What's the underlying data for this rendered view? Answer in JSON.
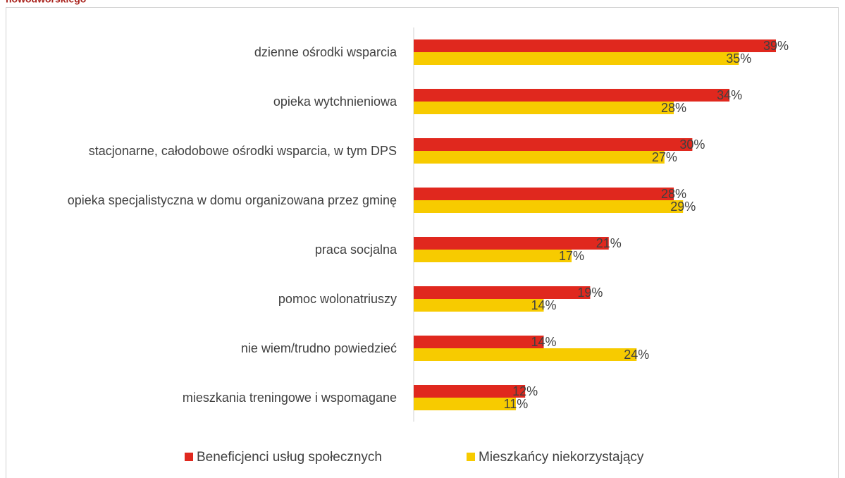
{
  "chart_data": {
    "type": "hbar",
    "title": "nowodworskiego",
    "categories": [
      "dzienne ośrodki wsparcia",
      "opieka wytchnieniowa",
      "stacjonarne, całodobowe ośrodki wsparcia, w tym DPS",
      "opieka specjalistyczna w domu organizowana przez gminę",
      "praca socjalna",
      "pomoc wolonatriuszy",
      "nie wiem/trudno powiedzieć",
      "mieszkania treningowe i wspomagane"
    ],
    "series": [
      {
        "name": "Beneficjenci usług społecznych",
        "color": "#e0281e",
        "values": [
          39,
          34,
          30,
          28,
          21,
          19,
          14,
          12
        ],
        "value_labels": [
          "39%",
          "34%",
          "30%",
          "28%",
          "21%",
          "19%",
          "14%",
          "12%"
        ]
      },
      {
        "name": "Mieszkańcy niekorzystający",
        "color": "#f7cb00",
        "values": [
          35,
          28,
          27,
          29,
          17,
          14,
          24,
          11
        ],
        "value_labels": [
          "35%",
          "28%",
          "27%",
          "29%",
          "17%",
          "14%",
          "24%",
          "11%"
        ]
      }
    ],
    "xlim": [
      0,
      45
    ],
    "legend": "bottom"
  }
}
